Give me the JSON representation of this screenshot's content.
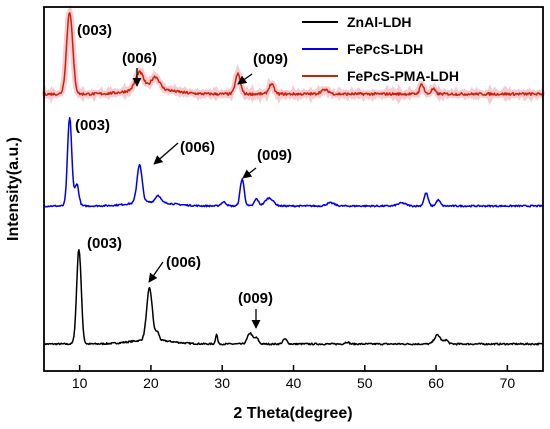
{
  "chart_data": {
    "type": "line",
    "xlabel": "2 Theta(degree)",
    "ylabel": "Intensity(a.u.)",
    "xlim": [
      5,
      75
    ],
    "xticks": [
      10,
      20,
      30,
      40,
      50,
      60,
      70
    ],
    "legend_position": "top-right",
    "series": [
      {
        "name": "ZnAl-LDH",
        "color": "#000000",
        "offset": 0,
        "peaks": [
          [
            9.9,
            95,
            0.45
          ],
          [
            19.8,
            52,
            0.55
          ],
          [
            20.9,
            8,
            0.35
          ],
          [
            29.2,
            10,
            0.2
          ],
          [
            33.9,
            11,
            0.5
          ],
          [
            34.8,
            6,
            0.4
          ],
          [
            38.8,
            5,
            0.4
          ],
          [
            47.5,
            2,
            0.4
          ],
          [
            60.2,
            9,
            0.6
          ],
          [
            61.4,
            4,
            0.4
          ]
        ]
      },
      {
        "name": "FePcS-LDH",
        "color": "#0000ee",
        "offset": 138,
        "peaks": [
          [
            8.6,
            88,
            0.42
          ],
          [
            9.6,
            22,
            0.4
          ],
          [
            18.4,
            38,
            0.5
          ],
          [
            21.0,
            7,
            0.5
          ],
          [
            30.2,
            4,
            0.5
          ],
          [
            32.8,
            27,
            0.4
          ],
          [
            34.8,
            7,
            0.4
          ],
          [
            36.6,
            8,
            0.8
          ],
          [
            45.2,
            3,
            0.8
          ],
          [
            55.2,
            3,
            0.8
          ],
          [
            58.6,
            13,
            0.4
          ],
          [
            60.3,
            6,
            0.4
          ]
        ]
      },
      {
        "name": "FePcS-PMA-LDH",
        "color": "#cc2200",
        "offset": 250,
        "peaks": [
          [
            8.6,
            82,
            0.6
          ],
          [
            18.4,
            17,
            0.8
          ],
          [
            20.6,
            12,
            0.8
          ],
          [
            32.2,
            20,
            0.5
          ],
          [
            36.9,
            10,
            0.5
          ],
          [
            44.4,
            4,
            0.8
          ],
          [
            58.0,
            10,
            0.4
          ],
          [
            59.6,
            5,
            0.4
          ]
        ]
      }
    ],
    "annotations": [
      {
        "text": "(003)",
        "series": 2
      },
      {
        "text": "(006)",
        "series": 2
      },
      {
        "text": "(009)",
        "series": 2
      },
      {
        "text": "(003)",
        "series": 1
      },
      {
        "text": "(006)",
        "series": 1
      },
      {
        "text": "(009)",
        "series": 1
      },
      {
        "text": "(003)",
        "series": 0
      },
      {
        "text": "(006)",
        "series": 0
      },
      {
        "text": "(009)",
        "series": 0
      }
    ]
  }
}
